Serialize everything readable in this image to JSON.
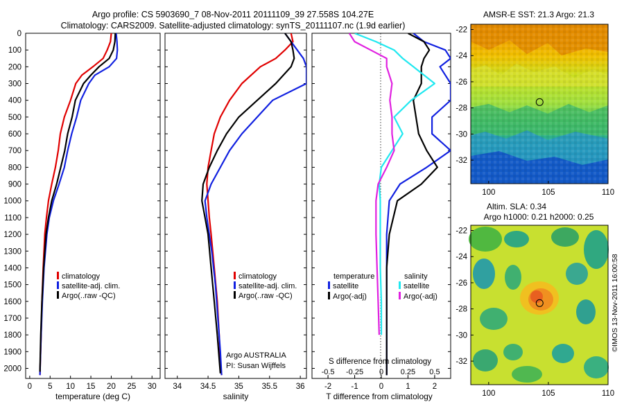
{
  "figure": {
    "title_line1": "Argo profile: CS 5903690_7 08-Nov-2011 20111109_39 27.558S 104.27E",
    "title_line2": "Climatology: CARS2009. Satellite-adjusted climatology: synTS_20111107.nc (1.9d earlier)",
    "credit": "©IMOS 13-Nov-2011 16:00:58"
  },
  "colors": {
    "climatology": "#e00000",
    "satellite": "#1020e0",
    "argo": "#000000",
    "salinity_satellite": "#20e8f0",
    "salinity_argo": "#e020e0"
  },
  "depth_axis": {
    "ticks": [
      "0",
      "100",
      "200",
      "300",
      "400",
      "500",
      "600",
      "700",
      "800",
      "900",
      "1000",
      "1100",
      "1200",
      "1300",
      "1400",
      "1500",
      "1600",
      "1700",
      "1800",
      "1900",
      "2000"
    ],
    "range": [
      0,
      2060
    ],
    "direction": "reversed"
  },
  "chart_data": [
    {
      "type": "line",
      "xlabel": "temperature (deg C)",
      "xlim": [
        -1,
        32
      ],
      "ylim": [
        2060,
        0
      ],
      "xticks": [
        "0",
        "5",
        "10",
        "15",
        "20",
        "25",
        "30"
      ],
      "legend": [
        "climatology",
        "satellite-adj. clim.",
        "Argo(..raw -QC)"
      ],
      "legend_position": "lower-left",
      "series": [
        {
          "name": "climatology",
          "color": "red",
          "x": [
            20.0,
            19.8,
            19.0,
            18.0,
            15.5,
            12.8,
            11.3,
            10.0,
            8.5,
            7.5,
            7.0,
            6.3,
            5.4,
            4.6,
            4.1,
            3.7,
            3.3,
            3.0,
            2.8,
            2.6,
            2.5
          ],
          "y": [
            0,
            50,
            100,
            150,
            200,
            250,
            300,
            400,
            500,
            600,
            700,
            800,
            900,
            1000,
            1100,
            1200,
            1400,
            1600,
            1800,
            1950,
            2040
          ]
        },
        {
          "name": "satellite-adj. clim.",
          "color": "blue",
          "x": [
            21.2,
            21.4,
            21.5,
            21.3,
            19.5,
            16.0,
            14.5,
            12.5,
            11.5,
            10.3,
            9.3,
            8.5,
            7.2,
            5.8,
            4.8,
            4.2,
            3.5,
            3.1,
            2.8,
            2.6,
            2.5
          ],
          "y": [
            0,
            50,
            100,
            150,
            200,
            250,
            300,
            400,
            500,
            600,
            700,
            800,
            900,
            1000,
            1100,
            1200,
            1400,
            1600,
            1800,
            1950,
            2040
          ]
        },
        {
          "name": "Argo(..raw -QC)",
          "color": "black",
          "x": [
            21.0,
            20.9,
            20.5,
            19.5,
            17.0,
            15.0,
            13.2,
            11.2,
            10.4,
            9.3,
            8.6,
            7.6,
            6.6,
            5.4,
            4.6,
            4.0,
            3.4,
            3.0,
            2.7,
            2.5
          ],
          "y": [
            0,
            50,
            100,
            150,
            200,
            250,
            300,
            400,
            500,
            600,
            700,
            800,
            900,
            1000,
            1100,
            1200,
            1400,
            1600,
            1800,
            2020
          ]
        }
      ]
    },
    {
      "type": "line",
      "xlabel": "salinity",
      "xlim": [
        33.8,
        36.1
      ],
      "ylim": [
        2060,
        0
      ],
      "xticks": [
        "34",
        "34.5",
        "35",
        "35.5",
        "36"
      ],
      "legend": [
        "climatology",
        "satellite-adj. clim.",
        "Argo(..raw -QC)"
      ],
      "legend_position": "lower-right",
      "annotations": [
        "Argo AUSTRALIA",
        "PI: Susan Wijffels"
      ],
      "series": [
        {
          "name": "climatology",
          "color": "red",
          "x": [
            35.85,
            35.88,
            35.75,
            35.6,
            35.35,
            35.05,
            34.85,
            34.7,
            34.6,
            34.55,
            34.5,
            34.48,
            34.5,
            34.52,
            34.55,
            34.6,
            34.65,
            34.68,
            34.7,
            34.72
          ],
          "y": [
            0,
            50,
            100,
            150,
            200,
            300,
            400,
            500,
            600,
            700,
            800,
            900,
            1000,
            1100,
            1200,
            1400,
            1600,
            1800,
            1950,
            2040
          ]
        },
        {
          "name": "satellite-adj. clim.",
          "color": "blue",
          "x": [
            35.75,
            35.95,
            36.05,
            36.1,
            36.1,
            35.55,
            35.3,
            35.05,
            34.85,
            34.7,
            34.55,
            34.45,
            34.48,
            34.52,
            34.56,
            34.62,
            34.66,
            34.7,
            34.72
          ],
          "y": [
            0,
            100,
            150,
            200,
            300,
            400,
            500,
            600,
            700,
            800,
            900,
            1000,
            1100,
            1200,
            1300,
            1500,
            1700,
            1900,
            2040
          ]
        },
        {
          "name": "Argo(..raw -QC)",
          "color": "black",
          "x": [
            35.75,
            35.85,
            35.88,
            35.9,
            35.85,
            35.6,
            35.3,
            35.0,
            34.8,
            34.65,
            34.52,
            34.42,
            34.4,
            34.45,
            34.5,
            34.55,
            34.6,
            34.65,
            34.7
          ],
          "y": [
            0,
            50,
            100,
            150,
            200,
            300,
            400,
            500,
            600,
            700,
            800,
            900,
            1000,
            1100,
            1200,
            1400,
            1600,
            1800,
            2030
          ]
        }
      ]
    },
    {
      "type": "line",
      "xlabel": "T difference from climatology",
      "x2label": "S difference from climatology",
      "xlim": [
        -2.6,
        2.6
      ],
      "x2lim": [
        -0.65,
        0.65
      ],
      "ylim": [
        2060,
        0
      ],
      "xticks": [
        "-2",
        "-1",
        "0",
        "1",
        "2"
      ],
      "x2ticks": [
        "-0.5",
        "-0.25",
        "0",
        "0.25",
        "0.5"
      ],
      "legend": [
        "temperature",
        "satellite",
        "Argo(-adj)",
        "salinity",
        "satellite",
        "Argo(-adj)"
      ],
      "legend_position": "lower-center",
      "series": [
        {
          "name": "satellite",
          "axis": "temperature",
          "color": "blue",
          "x": [
            1.2,
            1.6,
            2.4,
            2.6,
            2.2,
            2.6,
            2.6,
            1.9,
            1.9,
            2.6,
            1.7,
            0.7,
            0.3,
            0.2,
            0.2,
            0.2,
            0.2,
            0.2
          ],
          "y": [
            0,
            50,
            100,
            150,
            200,
            300,
            400,
            500,
            600,
            700,
            800,
            900,
            1000,
            1200,
            1400,
            1600,
            1800,
            2040
          ]
        },
        {
          "name": "Argo(-adj)",
          "axis": "temperature",
          "color": "black",
          "x": [
            1.0,
            1.6,
            1.8,
            1.6,
            1.5,
            1.5,
            1.2,
            1.3,
            1.4,
            1.7,
            2.1,
            1.5,
            0.6,
            0.3,
            0.2,
            0.2,
            0.2,
            0.2
          ],
          "y": [
            0,
            50,
            100,
            150,
            200,
            300,
            400,
            500,
            600,
            700,
            800,
            900,
            1000,
            1200,
            1400,
            1600,
            1800,
            2040
          ]
        },
        {
          "name": "satellite",
          "axis": "salinity",
          "color": "cyan",
          "x": [
            -0.25,
            -0.05,
            0.12,
            0.2,
            0.3,
            0.5,
            0.28,
            0.12,
            0.2,
            0.1,
            0.0,
            -0.02,
            -0.01,
            -0.01,
            -0.01,
            0.0,
            0.0
          ],
          "y": [
            0,
            50,
            100,
            150,
            200,
            300,
            400,
            500,
            600,
            700,
            800,
            900,
            1000,
            1200,
            1400,
            1600,
            1800
          ]
        },
        {
          "name": "Argo(-adj)",
          "axis": "salinity",
          "color": "magenta",
          "x": [
            -0.3,
            -0.25,
            -0.1,
            0.05,
            0.05,
            0.1,
            0.08,
            0.1,
            0.1,
            0.12,
            0.05,
            -0.03,
            -0.05,
            -0.05,
            -0.04,
            -0.03,
            -0.02
          ],
          "y": [
            0,
            50,
            100,
            150,
            200,
            300,
            400,
            500,
            600,
            700,
            800,
            900,
            1000,
            1200,
            1400,
            1600,
            1800
          ]
        }
      ]
    },
    {
      "type": "heatmap",
      "title": "AMSR-E SST: 21.3 Argo: 21.3",
      "xlim": [
        98.5,
        110
      ],
      "ylim": [
        -33.8,
        -21.6
      ],
      "xticks": [
        "100",
        "105",
        "110"
      ],
      "yticks": [
        "-22",
        "-24",
        "-26",
        "-28",
        "-30",
        "-32"
      ],
      "marker": {
        "lon": 104.27,
        "lat": -27.558
      }
    },
    {
      "type": "heatmap",
      "title_line1": "Altim. SLA: 0.34",
      "title_line2": "Argo h1000: 0.21 h2000: 0.25",
      "xlim": [
        98.5,
        110
      ],
      "ylim": [
        -33.8,
        -21.6
      ],
      "xticks": [
        "100",
        "105",
        "110"
      ],
      "yticks": [
        "-22",
        "-24",
        "-26",
        "-28",
        "-30",
        "-32"
      ],
      "marker": {
        "lon": 104.27,
        "lat": -27.558
      }
    }
  ]
}
